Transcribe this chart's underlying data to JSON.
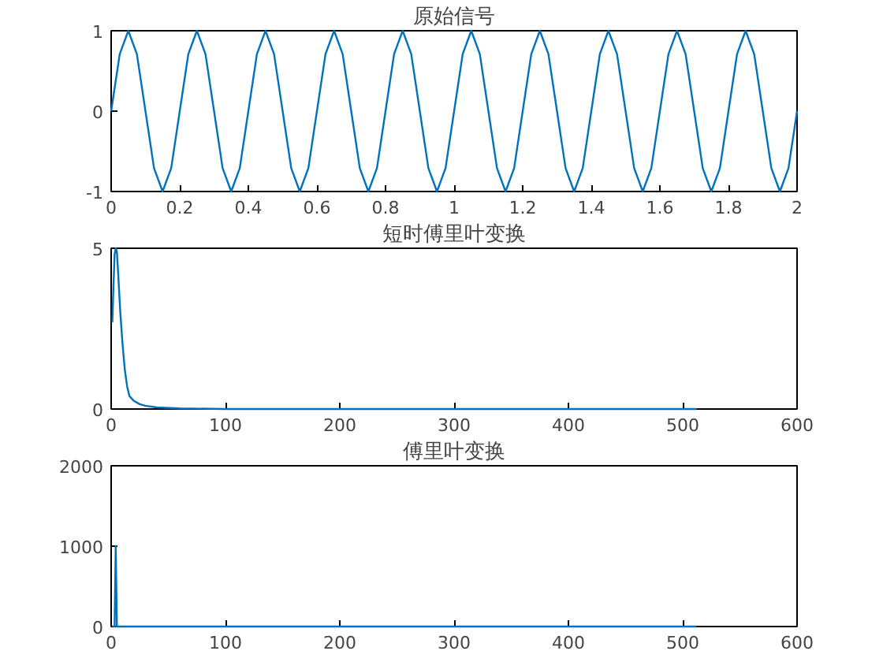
{
  "chart_data": [
    {
      "type": "line",
      "title": "原始信号",
      "x": [
        0,
        0.025,
        0.05,
        0.075,
        0.1,
        0.125,
        0.15,
        0.175,
        0.2,
        0.225,
        0.25,
        0.275,
        0.3,
        0.325,
        0.35,
        0.375,
        0.4,
        0.425,
        0.45,
        0.475,
        0.5,
        0.525,
        0.55,
        0.575,
        0.6,
        0.625,
        0.65,
        0.675,
        0.7,
        0.725,
        0.75,
        0.775,
        0.8,
        0.825,
        0.85,
        0.875,
        0.9,
        0.925,
        0.95,
        0.975,
        1,
        1.025,
        1.05,
        1.075,
        1.1,
        1.125,
        1.15,
        1.175,
        1.2,
        1.225,
        1.25,
        1.275,
        1.3,
        1.325,
        1.35,
        1.375,
        1.4,
        1.425,
        1.45,
        1.475,
        1.5,
        1.525,
        1.55,
        1.575,
        1.6,
        1.625,
        1.65,
        1.675,
        1.7,
        1.725,
        1.75,
        1.775,
        1.8,
        1.825,
        1.85,
        1.875,
        1.9,
        1.925,
        1.95,
        1.975,
        2
      ],
      "series": [
        {
          "color": "#0072bd",
          "values": [
            0,
            0.71,
            1,
            0.71,
            0,
            -0.71,
            -1,
            -0.71,
            0,
            0.71,
            1,
            0.71,
            0,
            -0.71,
            -1,
            -0.71,
            0,
            0.71,
            1,
            0.71,
            0,
            -0.71,
            -1,
            -0.71,
            0,
            0.71,
            1,
            0.71,
            0,
            -0.71,
            -1,
            -0.71,
            0,
            0.71,
            1,
            0.71,
            0,
            -0.71,
            -1,
            -0.71,
            0,
            0.71,
            1,
            0.71,
            0,
            -0.71,
            -1,
            -0.71,
            0,
            0.71,
            1,
            0.71,
            0,
            -0.71,
            -1,
            -0.71,
            0,
            0.71,
            1,
            0.71,
            0,
            -0.71,
            -1,
            -0.71,
            0,
            0.71,
            1,
            0.71,
            0,
            -0.71,
            -1,
            -0.71,
            0,
            0.71,
            1,
            0.71,
            0,
            -0.71,
            -1,
            -0.71,
            0
          ]
        }
      ],
      "xlim": [
        0,
        2
      ],
      "ylim": [
        -1,
        1
      ],
      "xticks": [
        0,
        0.2,
        0.4,
        0.6,
        0.8,
        1,
        1.2,
        1.4,
        1.6,
        1.8,
        2
      ],
      "yticks": [
        -1,
        0,
        1
      ],
      "grid": false
    },
    {
      "type": "line",
      "title": "短时傅里叶变换",
      "x": [
        1,
        2,
        3,
        4,
        5,
        6,
        8,
        10,
        12,
        14,
        16,
        20,
        25,
        30,
        40,
        60,
        100,
        200,
        300,
        400,
        512
      ],
      "series": [
        {
          "color": "#0072bd",
          "values": [
            2.7,
            3.8,
            4.8,
            5,
            4.9,
            4.3,
            3,
            2,
            1.2,
            0.7,
            0.4,
            0.25,
            0.15,
            0.1,
            0.05,
            0.02,
            0,
            0,
            0,
            0,
            0
          ]
        }
      ],
      "xlim": [
        0,
        600
      ],
      "ylim": [
        0,
        5
      ],
      "xticks": [
        0,
        100,
        200,
        300,
        400,
        500,
        600
      ],
      "yticks": [
        0,
        5
      ],
      "grid": false
    },
    {
      "type": "line",
      "title": "傅里叶变换",
      "x": [
        1,
        3,
        4,
        5,
        6,
        100,
        512
      ],
      "series": [
        {
          "color": "#0072bd",
          "values": [
            0,
            0,
            1000,
            0,
            0,
            0,
            0
          ]
        }
      ],
      "xlim": [
        0,
        600
      ],
      "ylim": [
        0,
        2000
      ],
      "xticks": [
        0,
        100,
        200,
        300,
        400,
        500,
        600
      ],
      "yticks": [
        0,
        1000,
        2000
      ],
      "grid": false
    }
  ]
}
